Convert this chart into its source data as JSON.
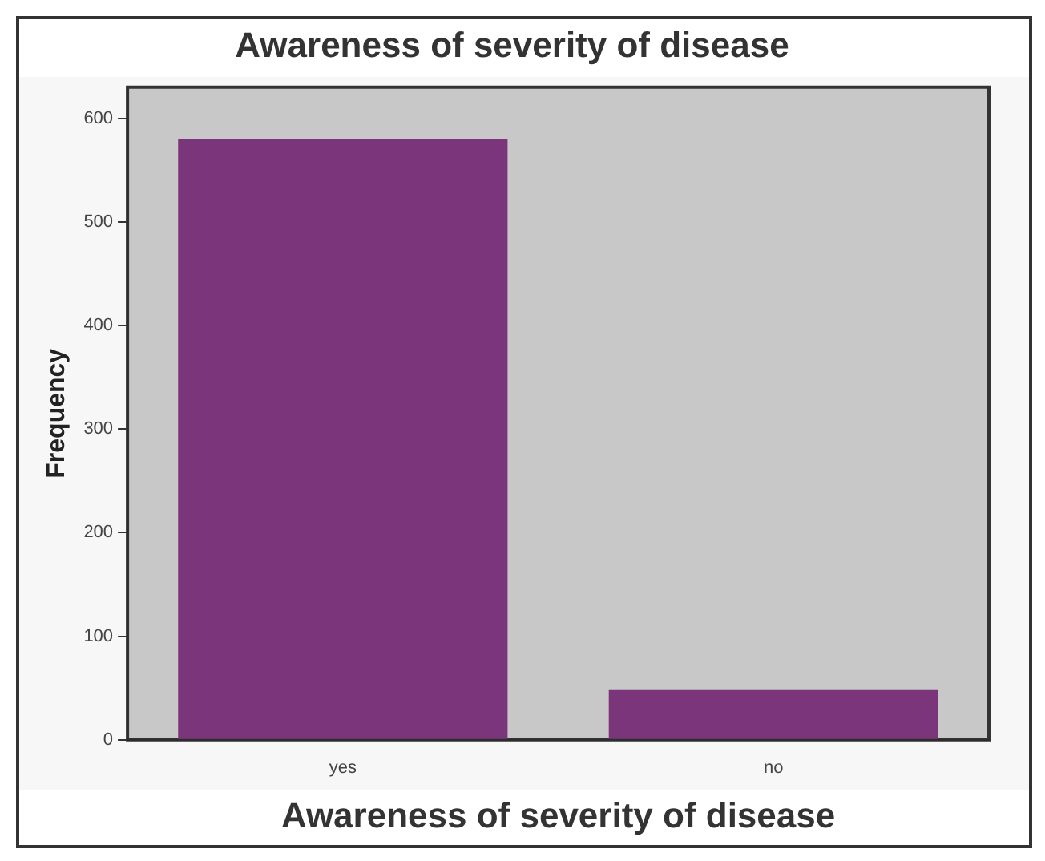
{
  "chart_data": {
    "type": "bar",
    "title": "Awareness of severity of disease",
    "xlabel": "Awareness of severity of disease",
    "ylabel": "Frequency",
    "categories": [
      "yes",
      "no"
    ],
    "values": [
      580,
      48
    ],
    "color": "#7b357b",
    "ylim": [
      0,
      630
    ],
    "yticks": [
      0,
      100,
      200,
      300,
      400,
      500,
      600
    ],
    "grid": false,
    "legend": false
  }
}
